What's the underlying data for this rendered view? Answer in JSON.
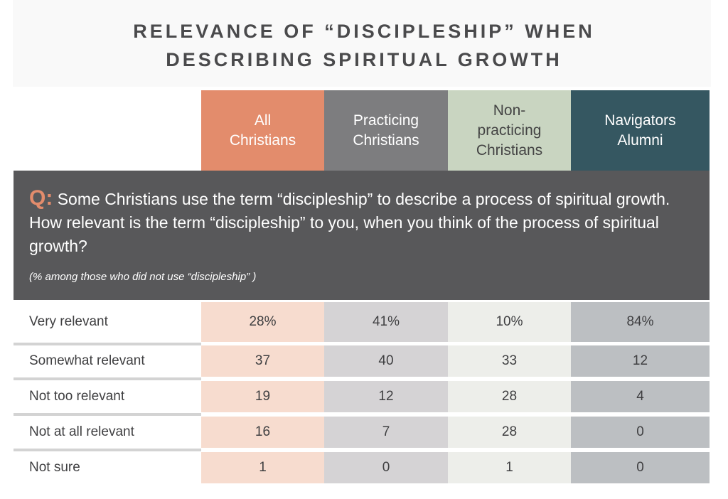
{
  "title_lines": [
    "RELEVANCE OF “DISCIPLESHIP” WHEN",
    "DESCRIBING SPIRITUAL GROWTH"
  ],
  "colors": {
    "all": "#e38c6c",
    "practicing": "#7d7d7f",
    "nonpracticing": "#c9d5c1",
    "navigators": "#355761",
    "question_bg": "#58585a"
  },
  "columns": [
    {
      "label": "All Christians",
      "lines": [
        "All",
        "Christians"
      ]
    },
    {
      "label": "Practicing Christians",
      "lines": [
        "Practicing",
        "Christians"
      ]
    },
    {
      "label": "Non-practicing Christians",
      "lines": [
        "Non-",
        "practicing",
        "Christians"
      ]
    },
    {
      "label": "Navigators Alumni",
      "lines": [
        "Navigators",
        "Alumni"
      ]
    }
  ],
  "question": {
    "prefix": "Q:",
    "text": "Some Christians use the term “discipleship” to describe a process of spiritual growth. How relevant is the term “discipleship” to you, when you think of the process of spiritual growth?",
    "note": "(% among those who did not use “discipleship” )"
  },
  "chart_data": {
    "type": "table",
    "columns": [
      "All Christians",
      "Practicing Christians",
      "Non-practicing Christians",
      "Navigators Alumni"
    ],
    "rows": [
      {
        "label": "Very relevant",
        "values": [
          "28%",
          "41%",
          "10%",
          "84%"
        ]
      },
      {
        "label": "Somewhat relevant",
        "values": [
          "37",
          "40",
          "33",
          "12"
        ]
      },
      {
        "label": "Not too relevant",
        "values": [
          "19",
          "12",
          "28",
          "4"
        ]
      },
      {
        "label": "Not at all relevant",
        "values": [
          "16",
          "7",
          "28",
          "0"
        ]
      },
      {
        "label": "Not sure",
        "values": [
          "1",
          "0",
          "1",
          "0"
        ]
      }
    ]
  }
}
